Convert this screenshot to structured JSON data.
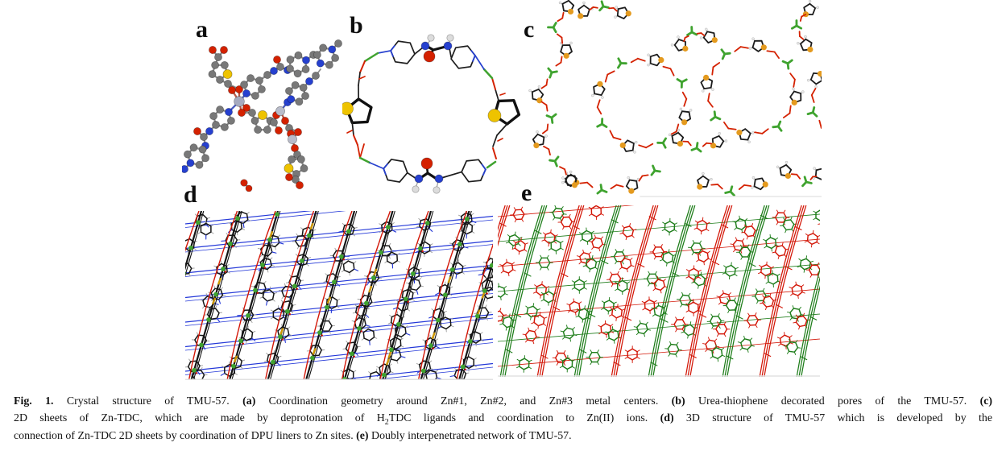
{
  "panels": {
    "a": {
      "label": "a"
    },
    "b": {
      "label": "b"
    },
    "c": {
      "label": "c"
    },
    "d": {
      "label": "d"
    },
    "e": {
      "label": "e"
    }
  },
  "caption": {
    "lines": [
      {
        "justify": true,
        "segments": [
          {
            "text": "Fig. 1.",
            "bold": true
          },
          {
            "text": "  Crystal structure of TMU-57. ",
            "bold": false
          },
          {
            "text": "(a)",
            "bold": true
          },
          {
            "text": " Coordination geometry around Zn#1, Zn#2, and Zn#3 metal centers. ",
            "bold": false
          },
          {
            "text": "(b)",
            "bold": true
          },
          {
            "text": " Urea-thiophene decorated pores of the TMU-57. ",
            "bold": false
          },
          {
            "text": "(c)",
            "bold": true
          }
        ]
      },
      {
        "justify": true,
        "segments": [
          {
            "text": "2D sheets of Zn-TDC, which are made by deprotonation of H",
            "bold": false
          },
          {
            "text": "2",
            "bold": false,
            "sub": true
          },
          {
            "text": "TDC ligands and coordination to Zn(II) ions. ",
            "bold": false
          },
          {
            "text": "(d)",
            "bold": true
          },
          {
            "text": " 3D structure of TMU-57 which is developed by the",
            "bold": false
          }
        ]
      },
      {
        "justify": false,
        "segments": [
          {
            "text": "connection of Zn-TDC 2D sheets by coordination of DPU liners to Zn sites. ",
            "bold": false
          },
          {
            "text": "(e)",
            "bold": true
          },
          {
            "text": " Doubly interpenetrated network of TMU-57.",
            "bold": false
          }
        ]
      }
    ]
  },
  "colors": {
    "carbon": "#787878",
    "oxygen": "#d42100",
    "nitrogen": "#2640cf",
    "sulfur": "#eec300",
    "sulfur_wire": "#e49a1e",
    "zinc_ball": "#a6aabf",
    "zinc_green": "#3fa32f",
    "hydrogen": "#dcdcdc",
    "bond_gray": "#8f8f8f",
    "wire_black": "#1c1c1c",
    "net_blue": "#2438d8",
    "net_red": "#d31708",
    "net_green": "#1e7d1a",
    "label": "#111111"
  }
}
